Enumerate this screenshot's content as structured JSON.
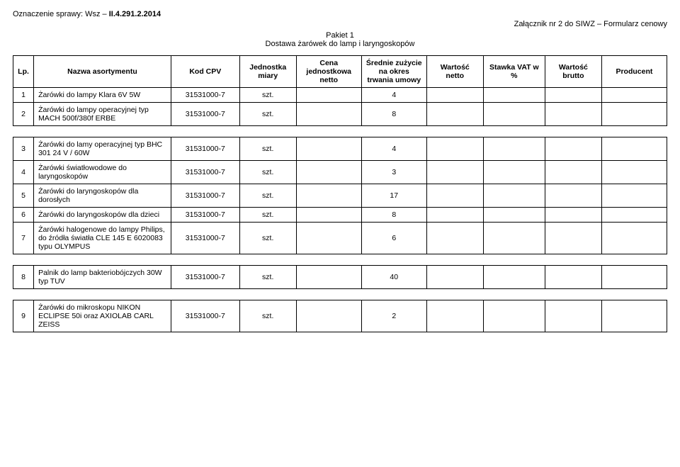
{
  "header": {
    "case_label": "Oznaczenie sprawy: Wsz –",
    "case_number": "II.4.291.2.2014",
    "attachment_label": "Załącznik nr 2 do SIWZ – Formularz cenowy",
    "pakiet_line1": "Pakiet 1",
    "pakiet_line2": "Dostawa żarówek do lamp i laryngoskopów"
  },
  "columns": {
    "lp": "Lp.",
    "name": "Nazwa asortymentu",
    "cpv": "Kod CPV",
    "unit": "Jednostka miary",
    "price": "Cena jednostkowa netto",
    "qty": "Średnie zużycie na okres trwania umowy",
    "netto": "Wartość netto",
    "vat": "Stawka VAT w %",
    "brutto": "Wartość brutto",
    "producer": "Producent"
  },
  "rows": [
    {
      "lp": "1",
      "name": "Żarówki do lampy Klara 6V 5W",
      "cpv": "31531000-7",
      "unit": "szt.",
      "qty": "4"
    },
    {
      "lp": "2",
      "name": "Żarówki do lampy operacyjnej typ MACH 500f/380f ERBE",
      "cpv": "31531000-7",
      "unit": "szt.",
      "qty": "8"
    },
    {
      "lp": "3",
      "name": "Żarówki do lamy operacyjnej typ BHC 301 24 V / 60W",
      "cpv": "31531000-7",
      "unit": "szt.",
      "qty": "4"
    },
    {
      "lp": "4",
      "name": "Żarówki światłowodowe do laryngoskopów",
      "cpv": "31531000-7",
      "unit": "szt.",
      "qty": "3"
    },
    {
      "lp": "5",
      "name": "Żarówki do laryngoskopów  dla dorosłych",
      "cpv": "31531000-7",
      "unit": "szt.",
      "qty": "17"
    },
    {
      "lp": "6",
      "name": "Żarówki do laryngoskopów dla dzieci",
      "cpv": "31531000-7",
      "unit": "szt.",
      "qty": "8"
    },
    {
      "lp": "7",
      "name": "Żarówki halogenowe do lampy Philips, do źródła światła CLE 145 E 6020083 typu OLYMPUS",
      "cpv": "31531000-7",
      "unit": "szt.",
      "qty": "6"
    },
    {
      "lp": "8",
      "name": "Palnik do lamp bakteriobójczych 30W typ TUV",
      "cpv": "31531000-7",
      "unit": "szt.",
      "qty": "40"
    },
    {
      "lp": "9",
      "name": "Żarówki do mikroskopu NIKON ECLIPSE 50i oraz AXIOLAB CARL ZEISS",
      "cpv": "31531000-7",
      "unit": "szt.",
      "qty": "2"
    }
  ],
  "spacers_after": [
    2,
    7,
    8
  ],
  "style": {
    "background_color": "#ffffff",
    "text_color": "#000000",
    "border_color": "#000000",
    "font_family": "Arial",
    "body_font_size": 11,
    "cell_font_size": 10.5
  }
}
